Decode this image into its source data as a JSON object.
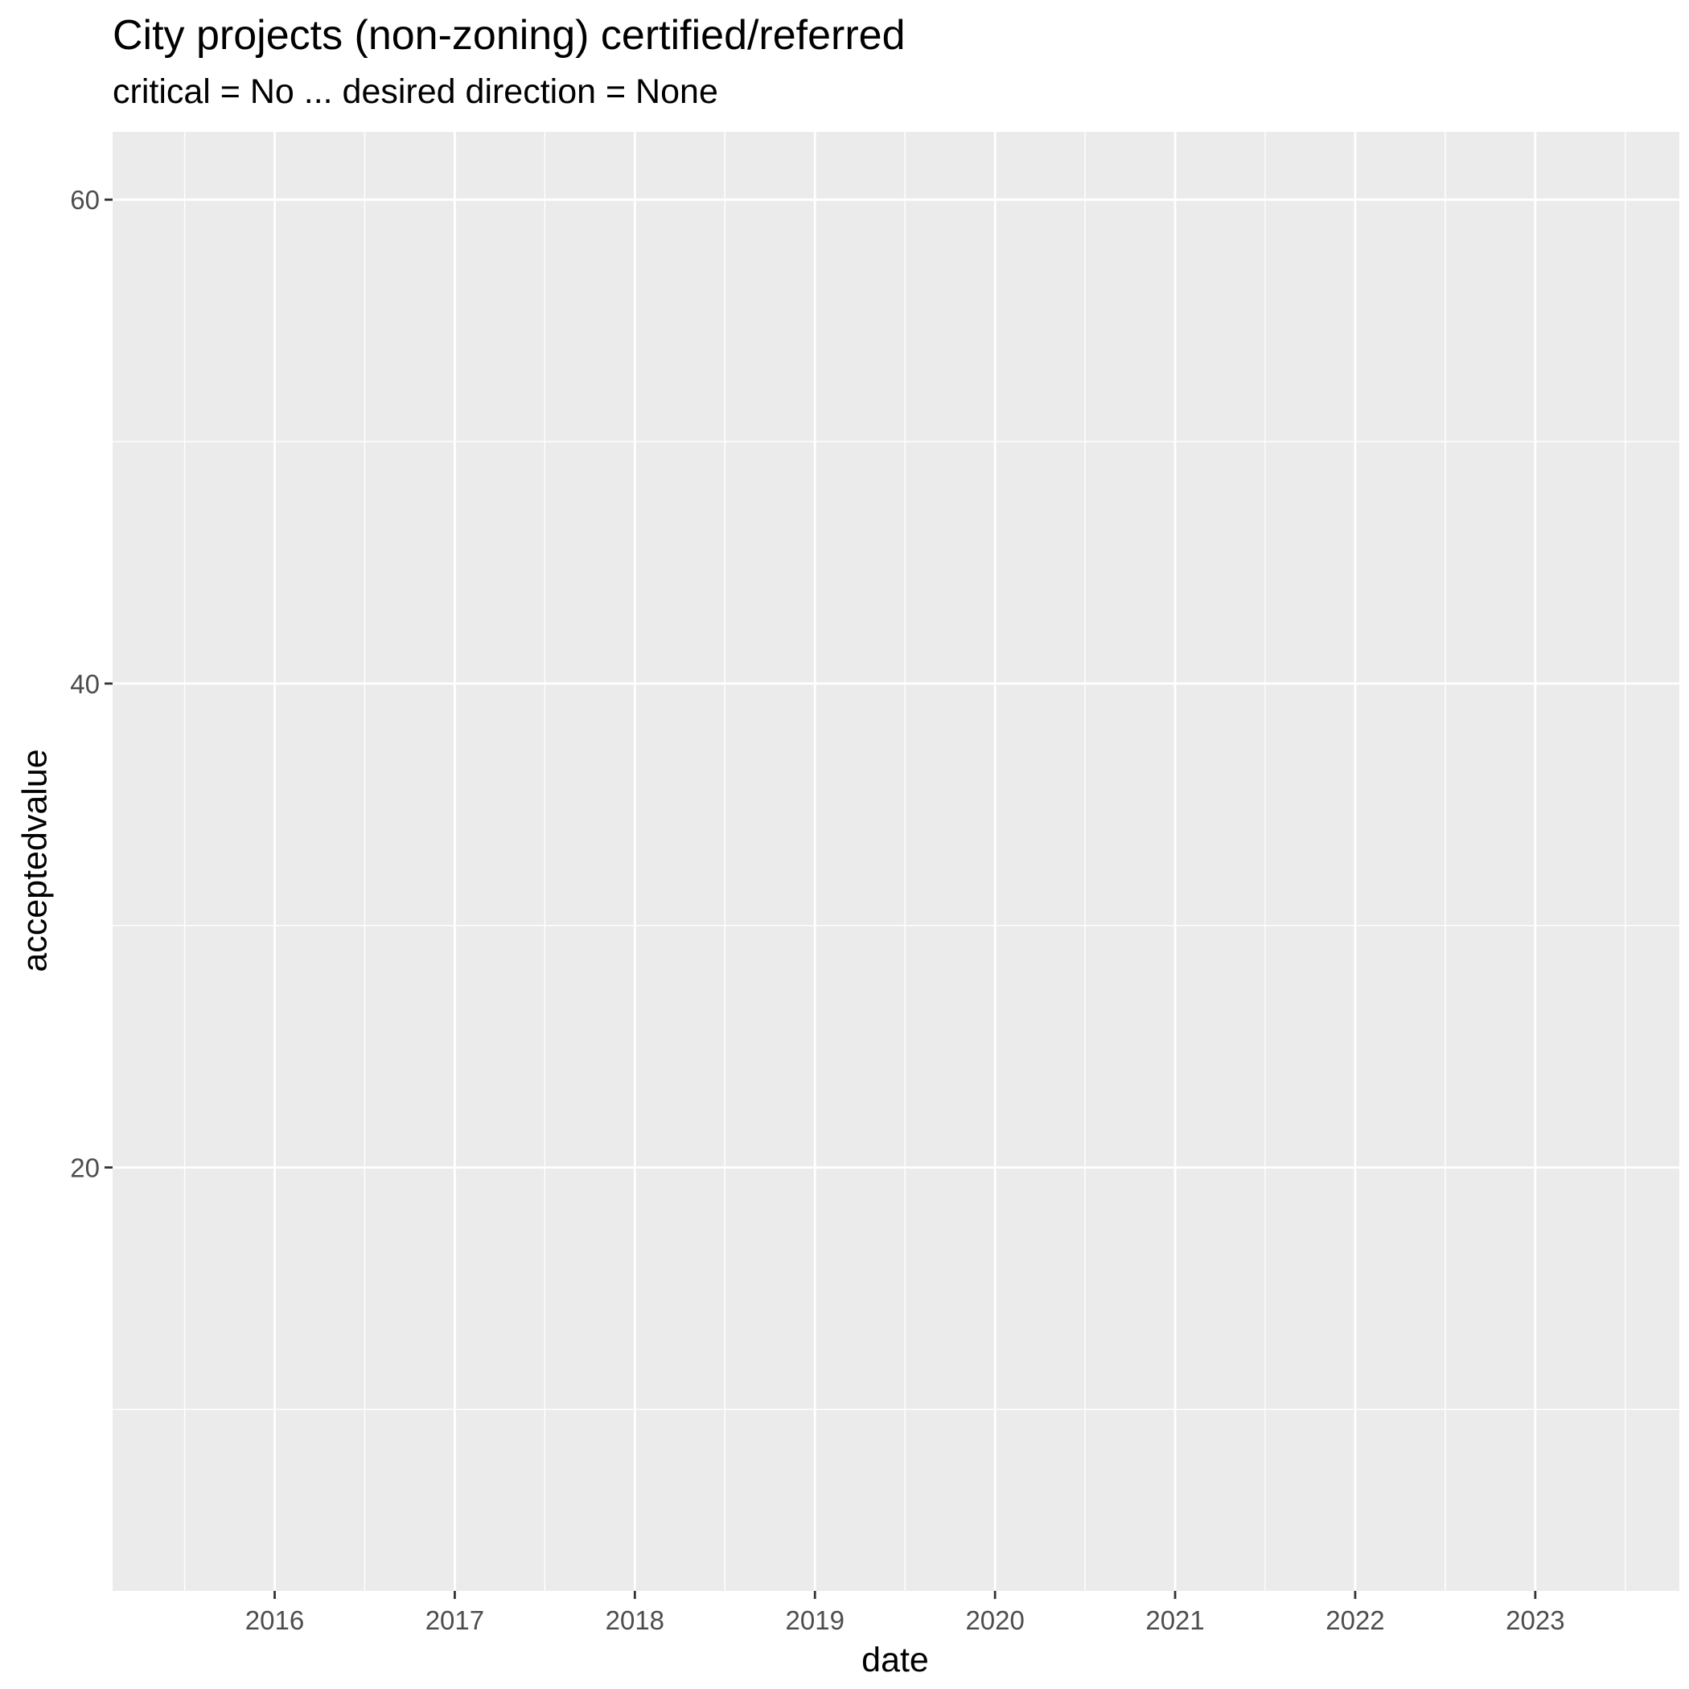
{
  "chart_data": {
    "type": "line",
    "title": "City projects (non-zoning) certified/referred",
    "subtitle": "critical = No ... desired direction = None",
    "xlabel": "date",
    "ylabel": "acceptedvalue",
    "x_ticks": [
      "2016",
      "2017",
      "2018",
      "2019",
      "2020",
      "2021",
      "2022",
      "2023"
    ],
    "y_ticks": [
      20,
      40,
      60
    ],
    "xlim": [
      2015.1,
      2023.8
    ],
    "ylim": [
      2.5,
      62.8
    ],
    "series": [],
    "grid": true,
    "panel_color": "#ebebeb",
    "grid_color": "#ffffff"
  }
}
